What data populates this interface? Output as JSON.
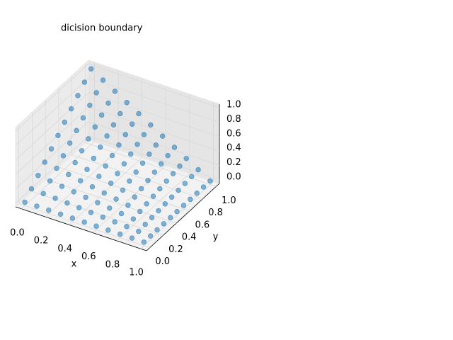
{
  "chart_data": {
    "type": "scatter3d",
    "title": "dicision boundary",
    "x_label": "x",
    "y_label": "y",
    "color": "#1f77b4",
    "xlim": [
      -0.05,
      1.05
    ],
    "ylim": [
      -0.05,
      1.05
    ],
    "zlim": [
      -0.05,
      1.05
    ],
    "xticks": [
      {
        "value": 0,
        "label": "0.0"
      },
      {
        "value": 0.2,
        "label": "0.2"
      },
      {
        "value": 0.4,
        "label": "0.4"
      },
      {
        "value": 0.6,
        "label": "0.6"
      },
      {
        "value": 0.8,
        "label": "0.8"
      },
      {
        "value": 1,
        "label": "1.0"
      }
    ],
    "yticks": [
      {
        "value": 0,
        "label": "0.0"
      },
      {
        "value": 0.2,
        "label": "0.2"
      },
      {
        "value": 0.4,
        "label": "0.4"
      },
      {
        "value": 0.6,
        "label": "0.6"
      },
      {
        "value": 0.8,
        "label": "0.8"
      },
      {
        "value": 1,
        "label": "1.0"
      }
    ],
    "zticks": [
      {
        "value": 0,
        "label": "0.0"
      },
      {
        "value": 0.2,
        "label": "0.2"
      },
      {
        "value": 0.4,
        "label": "0.4"
      },
      {
        "value": 0.6,
        "label": "0.6"
      },
      {
        "value": 0.8,
        "label": "0.8"
      },
      {
        "value": 1,
        "label": "1.0"
      }
    ],
    "grid": true,
    "x": [
      0,
      0,
      0,
      0,
      0,
      0,
      0,
      0,
      0,
      0,
      0,
      0.1,
      0.1,
      0.1,
      0.1,
      0.1,
      0.1,
      0.1,
      0.1,
      0.1,
      0.1,
      0.1,
      0.2,
      0.2,
      0.2,
      0.2,
      0.2,
      0.2,
      0.2,
      0.2,
      0.2,
      0.2,
      0.2,
      0.3,
      0.3,
      0.3,
      0.3,
      0.3,
      0.3,
      0.3,
      0.3,
      0.3,
      0.3,
      0.3,
      0.4,
      0.4,
      0.4,
      0.4,
      0.4,
      0.4,
      0.4,
      0.4,
      0.4,
      0.4,
      0.4,
      0.5,
      0.5,
      0.5,
      0.5,
      0.5,
      0.5,
      0.5,
      0.5,
      0.5,
      0.5,
      0.5,
      0.6,
      0.6,
      0.6,
      0.6,
      0.6,
      0.6,
      0.6,
      0.6,
      0.6,
      0.6,
      0.6,
      0.7,
      0.7,
      0.7,
      0.7,
      0.7,
      0.7,
      0.7,
      0.7,
      0.7,
      0.7,
      0.7,
      0.8,
      0.8,
      0.8,
      0.8,
      0.8,
      0.8,
      0.8,
      0.8,
      0.8,
      0.8,
      0.8,
      0.9,
      0.9,
      0.9,
      0.9,
      0.9,
      0.9,
      0.9,
      0.9,
      0.9,
      0.9,
      0.9,
      1,
      1,
      1,
      1,
      1,
      1,
      1,
      1,
      1,
      1,
      1
    ],
    "y": [
      0,
      0.1,
      0.2,
      0.3,
      0.4,
      0.5,
      0.6,
      0.7,
      0.8,
      0.9,
      1,
      0,
      0.1,
      0.2,
      0.3,
      0.4,
      0.5,
      0.6,
      0.7,
      0.8,
      0.9,
      1,
      0,
      0.1,
      0.2,
      0.3,
      0.4,
      0.5,
      0.6,
      0.7,
      0.8,
      0.9,
      1,
      0,
      0.1,
      0.2,
      0.3,
      0.4,
      0.5,
      0.6,
      0.7,
      0.8,
      0.9,
      1,
      0,
      0.1,
      0.2,
      0.3,
      0.4,
      0.5,
      0.6,
      0.7,
      0.8,
      0.9,
      1,
      0,
      0.1,
      0.2,
      0.3,
      0.4,
      0.5,
      0.6,
      0.7,
      0.8,
      0.9,
      1,
      0,
      0.1,
      0.2,
      0.3,
      0.4,
      0.5,
      0.6,
      0.7,
      0.8,
      0.9,
      1,
      0,
      0.1,
      0.2,
      0.3,
      0.4,
      0.5,
      0.6,
      0.7,
      0.8,
      0.9,
      1,
      0,
      0.1,
      0.2,
      0.3,
      0.4,
      0.5,
      0.6,
      0.7,
      0.8,
      0.9,
      1,
      0,
      0.1,
      0.2,
      0.3,
      0.4,
      0.5,
      0.6,
      0.7,
      0.8,
      0.9,
      1,
      0,
      0.1,
      0.2,
      0.3,
      0.4,
      0.5,
      0.6,
      0.7,
      0.8,
      0.9,
      1
    ],
    "z": [
      0,
      0.1,
      0.2,
      0.3,
      0.4,
      0.5,
      0.6,
      0.7,
      0.8,
      0.9,
      1,
      0,
      0.09,
      0.18,
      0.27,
      0.36,
      0.45,
      0.54,
      0.63,
      0.72,
      0.81,
      0.9,
      0,
      0.08,
      0.16,
      0.24,
      0.32,
      0.4,
      0.48,
      0.56,
      0.64,
      0.72,
      0.8,
      0,
      0.07,
      0.14,
      0.21,
      0.28,
      0.35,
      0.42,
      0.49,
      0.56,
      0.63,
      0.7,
      0,
      0.06,
      0.12,
      0.18,
      0.24,
      0.3,
      0.36,
      0.42,
      0.48,
      0.54,
      0.6,
      0,
      0.05,
      0.1,
      0.15,
      0.2,
      0.25,
      0.3,
      0.35,
      0.4,
      0.45,
      0.5,
      0,
      0.04,
      0.08,
      0.12,
      0.16,
      0.2,
      0.24,
      0.28,
      0.32,
      0.36,
      0.4,
      0,
      0.03,
      0.06,
      0.09,
      0.12,
      0.15,
      0.18,
      0.21,
      0.24,
      0.27,
      0.3,
      0,
      0.02,
      0.04,
      0.06,
      0.08,
      0.1,
      0.12,
      0.14,
      0.16,
      0.18,
      0.2,
      0,
      0.01,
      0.02,
      0.03,
      0.04,
      0.05,
      0.06,
      0.07,
      0.08,
      0.09,
      0.1,
      0,
      0,
      0,
      0,
      0,
      0,
      0,
      0,
      0,
      0,
      0
    ]
  }
}
